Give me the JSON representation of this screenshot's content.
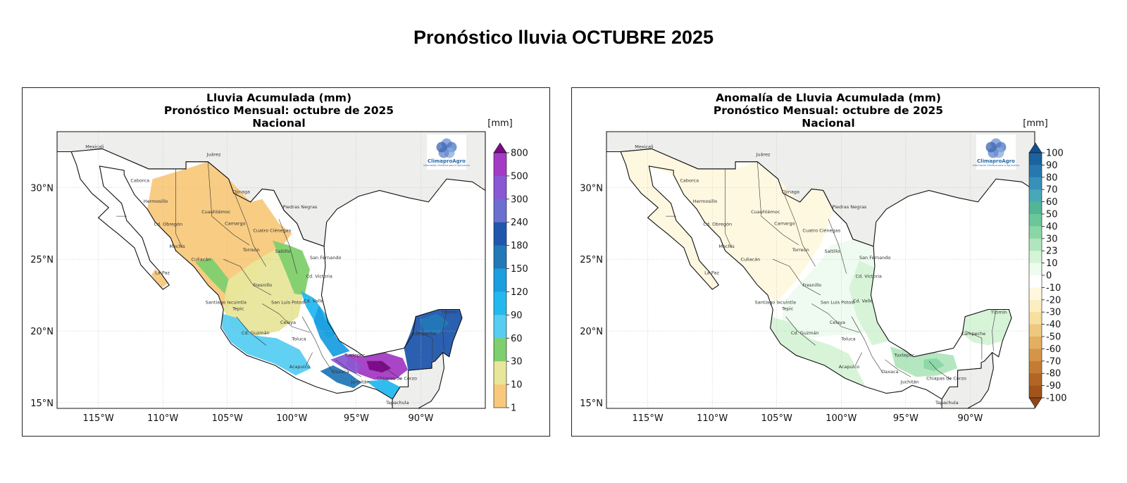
{
  "page": {
    "title": "Pronóstico lluvia OCTUBRE 2025"
  },
  "panels": [
    {
      "id": "accum",
      "title_lines": [
        "Lluvia Acumulada (mm)",
        "Pronóstico Mensual: octubre de 2025",
        "Nacional"
      ],
      "colorbar": {
        "unit": "[mm]",
        "labels": [
          "800",
          "500",
          "300",
          "240",
          "180",
          "150",
          "120",
          "90",
          "60",
          "30",
          "10",
          "1"
        ],
        "colors": [
          "#7a0a86",
          "#a43bc4",
          "#8b58d4",
          "#6a6fd0",
          "#2057ad",
          "#2378b8",
          "#1b9fe0",
          "#25b8ee",
          "#57cdf2",
          "#7fcf6e",
          "#e8e69a",
          "#f8c97c",
          "#ffffff"
        ],
        "extend": "max"
      }
    },
    {
      "id": "anomaly",
      "title_lines": [
        "Anomalía de Lluvia Acumulada (mm)",
        "Pronóstico Mensual: octubre de 2025",
        "Nacional"
      ],
      "colorbar": {
        "unit": "[mm]",
        "labels": [
          "100",
          "90",
          "80",
          "70",
          "60",
          "50",
          "40",
          "30",
          "23",
          "10",
          "0",
          "-10",
          "-20",
          "-30",
          "-40",
          "-50",
          "-60",
          "-70",
          "-80",
          "-90",
          "-100"
        ],
        "colors": [
          "#12508e",
          "#1b639f",
          "#2878b0",
          "#3790ba",
          "#48a8b8",
          "#52b596",
          "#6bc79a",
          "#8ad7a6",
          "#b0e6bd",
          "#d5f3d6",
          "#eefbef",
          "#ffffff",
          "#fff8df",
          "#fbeec0",
          "#f6df9f",
          "#eec87e",
          "#e3af60",
          "#d59548",
          "#c47c35",
          "#b36526",
          "#a2541c",
          "#904618"
        ],
        "extend": "both"
      }
    }
  ],
  "axes": {
    "lon_ticks": [
      "115°W",
      "110°W",
      "105°W",
      "100°W",
      "95°W",
      "90°W"
    ],
    "lat_ticks": [
      "30°N",
      "25°N",
      "20°N",
      "15°N"
    ]
  },
  "map_labels": {
    "cities": [
      "Mexicali",
      "Juárez",
      "Caborca",
      "Ojinaga",
      "Hermosillo",
      "Piedras Negras",
      "Cuauhtémoc",
      "Cd. Obregón",
      "Camargo",
      "Cuatro Ciénegas",
      "Torreón",
      "Mochis",
      "Saltillo",
      "Culiacán",
      "San Fernando",
      "Cd. Victoria",
      "La Paz",
      "Fresnillo",
      "Santiago Ixcuintla",
      "Cd. Valle",
      "San Luis Potosí",
      "Celaya",
      "Tepic",
      "Cd. Guzmán",
      "Toluca",
      "Acapulco",
      "Tuxtepec",
      "Campeche",
      "Tizimín",
      "Oaxaca",
      "Juchitán",
      "Chiapas de Corzo",
      "Tapachula"
    ],
    "logo_name": "ClimaproAgro",
    "logo_tagline": "Información Climática para la Agricultura"
  }
}
